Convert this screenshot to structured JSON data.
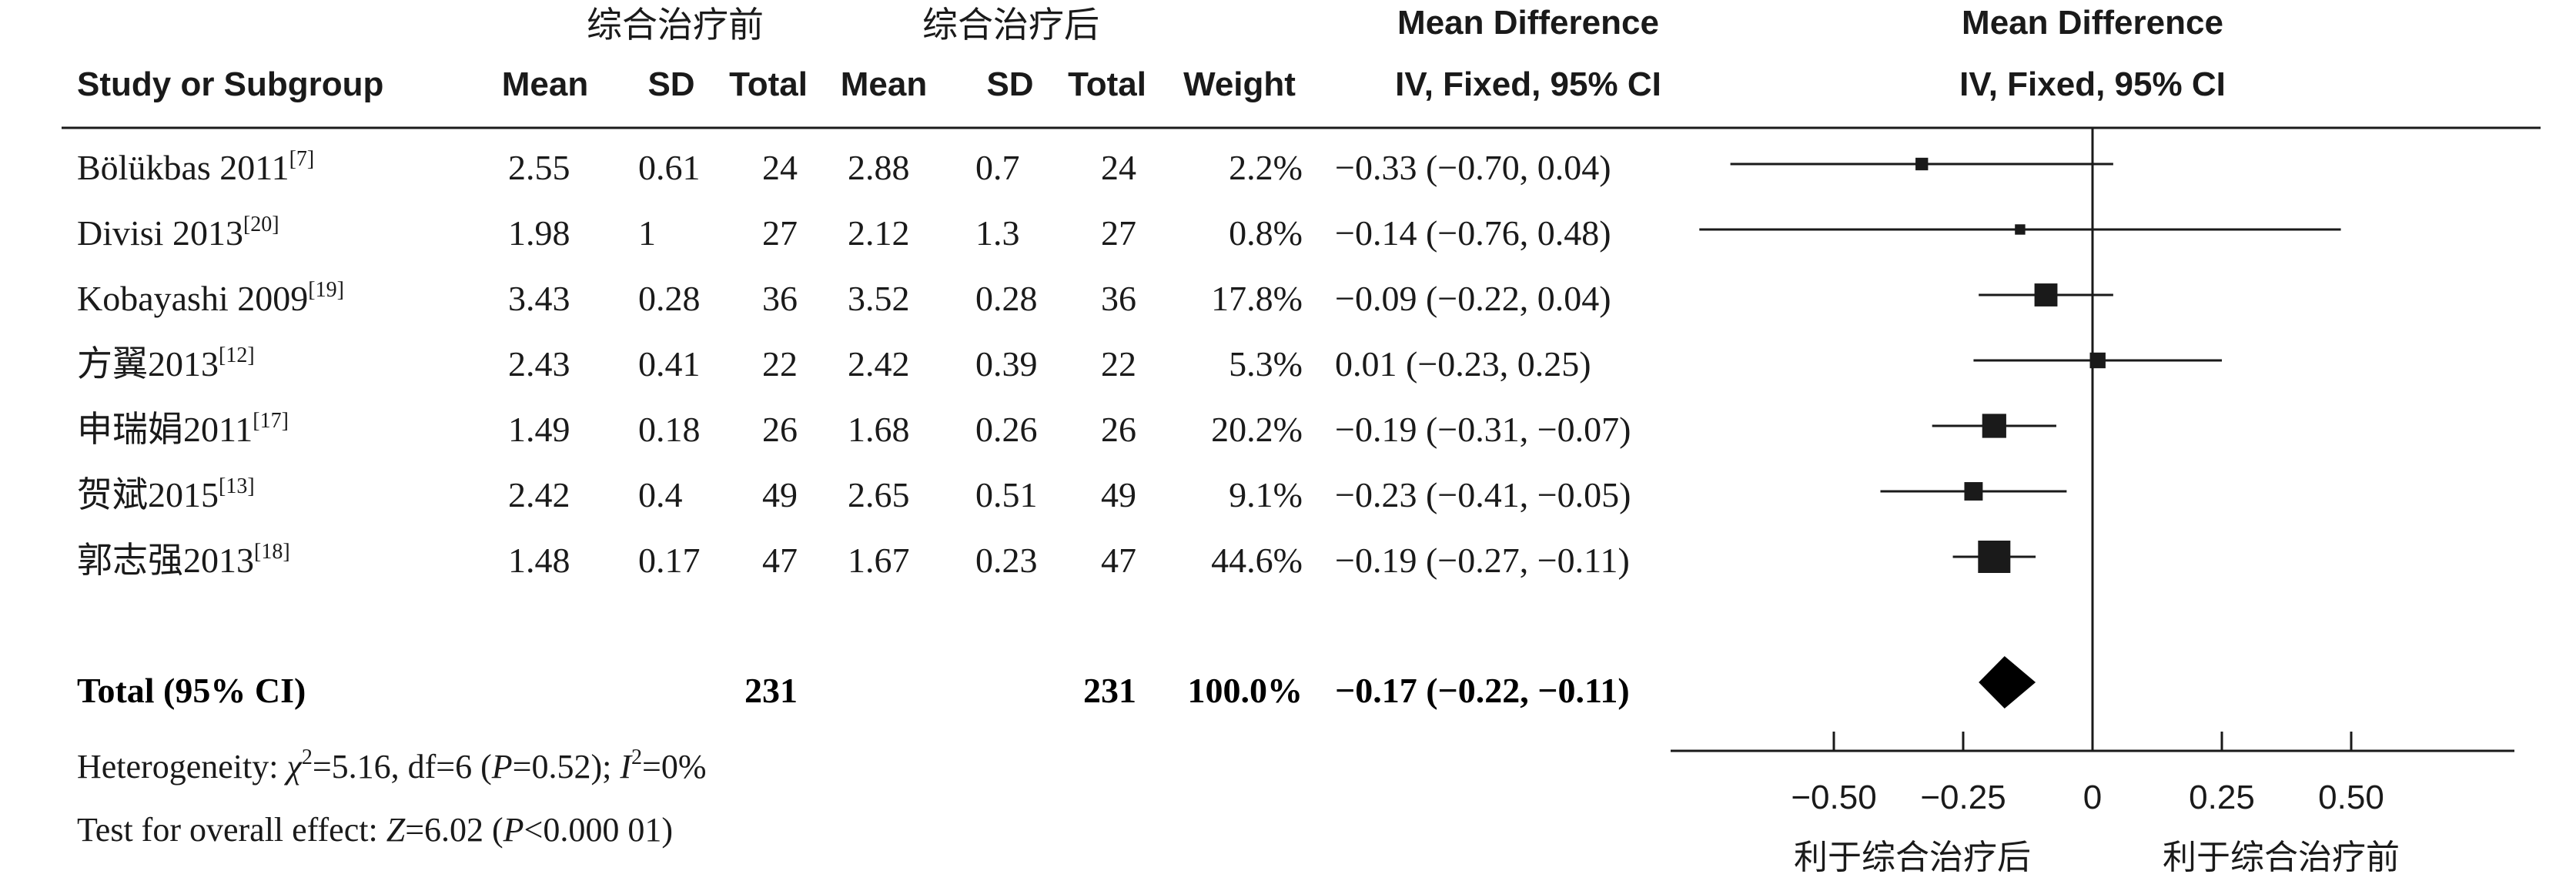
{
  "header": {
    "group_before": "综合治疗前",
    "group_after": "综合治疗后",
    "study_col": "Study or Subgroup",
    "mean": "Mean",
    "sd": "SD",
    "total": "Total",
    "weight": "Weight",
    "md_title": "Mean Difference",
    "md_sub": "IV, Fixed, 95% CI",
    "plot_title": "Mean Difference",
    "plot_sub": "IV, Fixed, 95% CI"
  },
  "studies": [
    {
      "name": "Bölükbas 2011",
      "ref": "[7]",
      "m1": "2.55",
      "sd1": "0.61",
      "n1": "24",
      "m2": "2.88",
      "sd2": "0.7",
      "n2": "24",
      "weight": "2.2%",
      "ci_text": "−0.33 (−0.70, 0.04)"
    },
    {
      "name": "Divisi 2013",
      "ref": "[20]",
      "m1": "1.98",
      "sd1": "1",
      "n1": "27",
      "m2": "2.12",
      "sd2": "1.3",
      "n2": "27",
      "weight": "0.8%",
      "ci_text": "−0.14 (−0.76, 0.48)"
    },
    {
      "name": "Kobayashi 2009",
      "ref": "[19]",
      "m1": "3.43",
      "sd1": "0.28",
      "n1": "36",
      "m2": "3.52",
      "sd2": "0.28",
      "n2": "36",
      "weight": "17.8%",
      "ci_text": "−0.09 (−0.22, 0.04)"
    },
    {
      "name": "方翼2013",
      "ref": "[12]",
      "m1": "2.43",
      "sd1": "0.41",
      "n1": "22",
      "m2": "2.42",
      "sd2": "0.39",
      "n2": "22",
      "weight": "5.3%",
      "ci_text": "0.01 (−0.23, 0.25)"
    },
    {
      "name": "申瑞娟2011",
      "ref": "[17]",
      "m1": "1.49",
      "sd1": "0.18",
      "n1": "26",
      "m2": "1.68",
      "sd2": "0.26",
      "n2": "26",
      "weight": "20.2%",
      "ci_text": "−0.19 (−0.31, −0.07)"
    },
    {
      "name": "贺斌2015",
      "ref": "[13]",
      "m1": "2.42",
      "sd1": "0.4",
      "n1": "49",
      "m2": "2.65",
      "sd2": "0.51",
      "n2": "49",
      "weight": "9.1%",
      "ci_text": "−0.23 (−0.41, −0.05)"
    },
    {
      "name": "郭志强2013",
      "ref": "[18]",
      "m1": "1.48",
      "sd1": "0.17",
      "n1": "47",
      "m2": "1.67",
      "sd2": "0.23",
      "n2": "47",
      "weight": "44.6%",
      "ci_text": "−0.19 (−0.27, −0.11)"
    }
  ],
  "total": {
    "label": "Total (95% CI)",
    "n1": "231",
    "n2": "231",
    "weight": "100.0%",
    "ci_text": "−0.17 (−0.22, −0.11)"
  },
  "heterogeneity": {
    "prefix": "Heterogeneity: ",
    "chi": "χ",
    "chi_rest": "=5.16, df=6 (",
    "p": "P",
    "p_rest": "=0.52); ",
    "i": "I",
    "i_rest": "=0%",
    "sup2": "2"
  },
  "overall": {
    "prefix": "Test for overall effect: ",
    "z": "Z",
    "z_rest": "=6.02 (",
    "p": "P",
    "p_rest": "<0.000 01)"
  },
  "axis": {
    "ticks": [
      "−0.50",
      "−0.25",
      "0",
      "0.25",
      "0.50"
    ]
  },
  "favours": {
    "left": "利于综合治疗后",
    "right": "利于综合治疗前"
  },
  "chart_data": {
    "type": "forest",
    "x_tick_values": [
      -0.5,
      -0.25,
      0,
      0.25,
      0.5
    ],
    "null_line": 0,
    "series": [
      {
        "md": -0.33,
        "lo": -0.7,
        "hi": 0.04,
        "weight": 2.2
      },
      {
        "md": -0.14,
        "lo": -0.76,
        "hi": 0.48,
        "weight": 0.8
      },
      {
        "md": -0.09,
        "lo": -0.22,
        "hi": 0.04,
        "weight": 17.8
      },
      {
        "md": 0.01,
        "lo": -0.23,
        "hi": 0.25,
        "weight": 5.3
      },
      {
        "md": -0.19,
        "lo": -0.31,
        "hi": -0.07,
        "weight": 20.2
      },
      {
        "md": -0.23,
        "lo": -0.41,
        "hi": -0.05,
        "weight": 9.1
      },
      {
        "md": -0.19,
        "lo": -0.27,
        "hi": -0.11,
        "weight": 44.6
      }
    ],
    "pooled": {
      "md": -0.17,
      "lo": -0.22,
      "hi": -0.11
    }
  }
}
